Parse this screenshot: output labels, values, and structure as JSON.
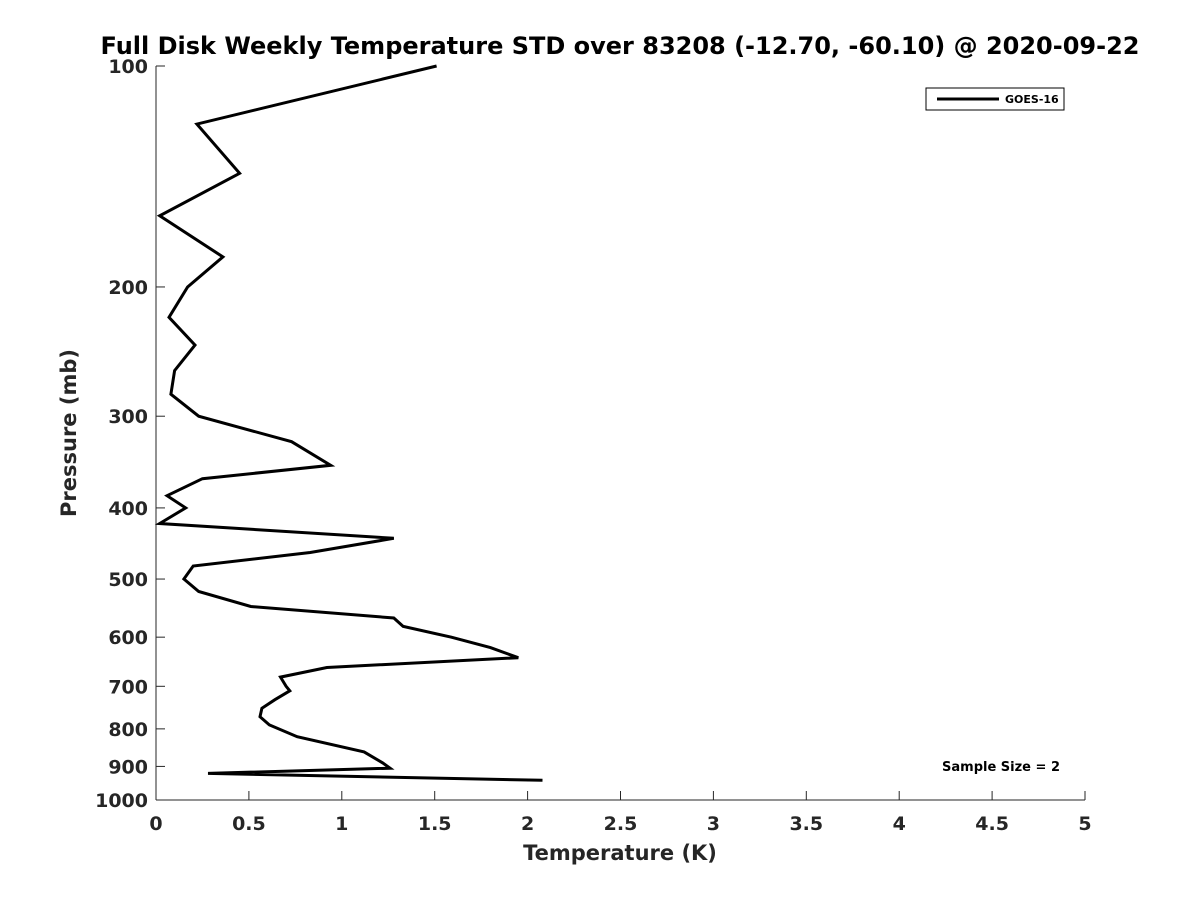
{
  "chart_data": {
    "type": "line",
    "title": "Full Disk Weekly Temperature STD over 83208 (-12.70, -60.10) @ 2020-09-22",
    "xlabel": "Temperature (K)",
    "ylabel": "Pressure (mb)",
    "xlim": [
      0,
      5
    ],
    "ylim": [
      100,
      1000
    ],
    "yscale": "log",
    "y_reversed": true,
    "x_ticks": [
      0,
      0.5,
      1,
      1.5,
      2,
      2.5,
      3,
      3.5,
      4,
      4.5,
      5
    ],
    "x_tick_labels": [
      "0",
      "0.5",
      "1",
      "1.5",
      "2",
      "2.5",
      "3",
      "3.5",
      "4",
      "4.5",
      "5"
    ],
    "y_ticks": [
      100,
      200,
      300,
      400,
      500,
      600,
      700,
      800,
      900,
      1000
    ],
    "y_tick_labels": [
      "100",
      "200",
      "300",
      "400",
      "500",
      "600",
      "700",
      "800",
      "900",
      "1000"
    ],
    "grid": false,
    "legend_position": "top-right",
    "annotation": "Sample Size = 2",
    "series": [
      {
        "name": "GOES-16",
        "color": "#000000",
        "points": [
          [
            1.51,
            100
          ],
          [
            0.22,
            120
          ],
          [
            0.45,
            140
          ],
          [
            0.02,
            160
          ],
          [
            0.36,
            182
          ],
          [
            0.17,
            200
          ],
          [
            0.07,
            220
          ],
          [
            0.21,
            240
          ],
          [
            0.1,
            260
          ],
          [
            0.08,
            280
          ],
          [
            0.23,
            300
          ],
          [
            0.73,
            325
          ],
          [
            0.94,
            350
          ],
          [
            0.25,
            365
          ],
          [
            0.06,
            385
          ],
          [
            0.16,
            400
          ],
          [
            0.02,
            420
          ],
          [
            1.28,
            440
          ],
          [
            0.83,
            460
          ],
          [
            0.2,
            480
          ],
          [
            0.15,
            500
          ],
          [
            0.23,
            520
          ],
          [
            0.51,
            545
          ],
          [
            1.28,
            565
          ],
          [
            1.33,
            580
          ],
          [
            1.59,
            600
          ],
          [
            1.8,
            620
          ],
          [
            1.95,
            640
          ],
          [
            0.92,
            660
          ],
          [
            0.67,
            680
          ],
          [
            0.7,
            700
          ],
          [
            0.72,
            710
          ],
          [
            0.64,
            730
          ],
          [
            0.57,
            750
          ],
          [
            0.56,
            770
          ],
          [
            0.61,
            790
          ],
          [
            0.76,
            820
          ],
          [
            1.12,
            860
          ],
          [
            1.22,
            890
          ],
          [
            1.26,
            905
          ],
          [
            0.28,
            920
          ],
          [
            2.08,
            940
          ]
        ]
      }
    ]
  }
}
